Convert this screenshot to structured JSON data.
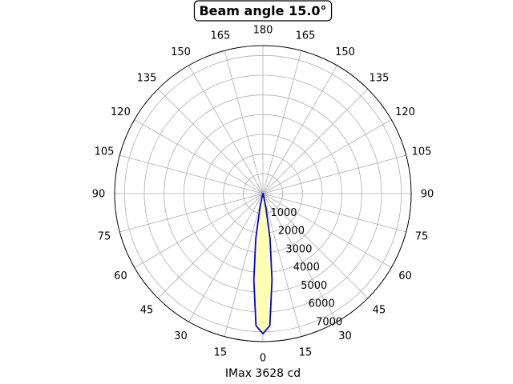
{
  "chart_data": {
    "type": "polar-line",
    "title": "Beam angle 15.0°",
    "xlabel": "IMax 3628 cd",
    "angle_tick_labels": [
      "0",
      "15",
      "30",
      "45",
      "60",
      "75",
      "90",
      "105",
      "120",
      "135",
      "150",
      "165",
      "180",
      "165",
      "150",
      "135",
      "120",
      "105",
      "90",
      "75",
      "60",
      "45",
      "30",
      "15"
    ],
    "radial_tick_labels": [
      "1000",
      "2000",
      "3000",
      "4000",
      "5000",
      "6000",
      "7000"
    ],
    "radial_ticks": [
      1000,
      2000,
      3000,
      4000,
      5000,
      6000,
      7000
    ],
    "rlim": [
      0,
      7500
    ],
    "grid": true,
    "series": [
      {
        "angles_deg": [
          -180,
          -90,
          -45,
          -20,
          -15,
          -12,
          -9,
          -6,
          -3,
          0,
          3,
          6,
          9,
          12,
          15,
          20,
          45,
          90,
          180
        ],
        "values": [
          0,
          0,
          0,
          0,
          120,
          700,
          2300,
          4400,
          6700,
          7100,
          6700,
          4400,
          2300,
          700,
          120,
          0,
          0,
          0,
          0
        ]
      }
    ],
    "colors": {
      "line": "#0000ff",
      "fill": "#ffffb2",
      "grid": "#b0b0b0",
      "frame": "#000000"
    }
  }
}
